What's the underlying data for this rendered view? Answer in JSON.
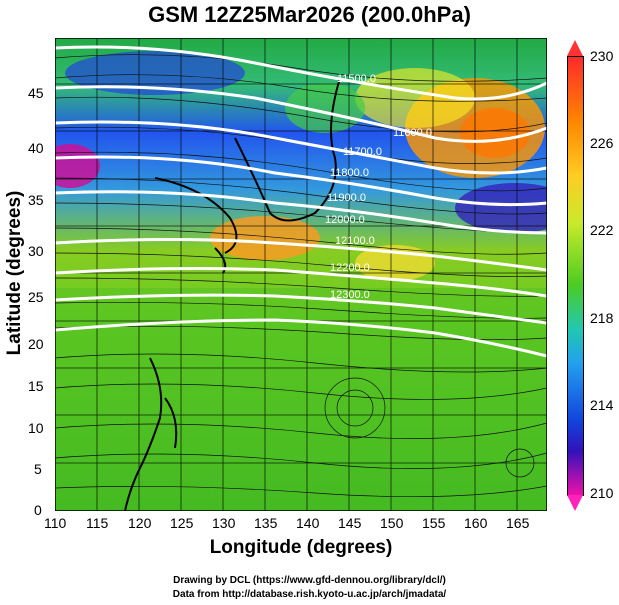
{
  "title": "GSM 12Z25Mar2026 (200.0hPa)",
  "x_axis": {
    "label": "Longitude (degrees)",
    "ticks": [
      "110",
      "115",
      "120",
      "125",
      "130",
      "135",
      "140",
      "145",
      "150",
      "155",
      "160",
      "165"
    ]
  },
  "y_axis": {
    "label": "Latitude  (degrees)",
    "ticks": [
      "0",
      "5",
      "10",
      "15",
      "20",
      "25",
      "30",
      "35",
      "40",
      "45"
    ]
  },
  "colorbar": {
    "labels": [
      "230",
      "226",
      "222",
      "218",
      "214",
      "210"
    ]
  },
  "contour_labels": [
    "11500.0",
    "11600.0",
    "11700.0",
    "11800.0",
    "11900.0",
    "12000.0",
    "12100.0",
    "12200.0",
    "12300.0"
  ],
  "credits": {
    "line1": "Drawing by DCL (https://www.gfd-dennou.org/library/dcl/)",
    "line2": "Data from http://database.rish.kyoto-u.ac.jp/arch/jmadata/"
  }
}
